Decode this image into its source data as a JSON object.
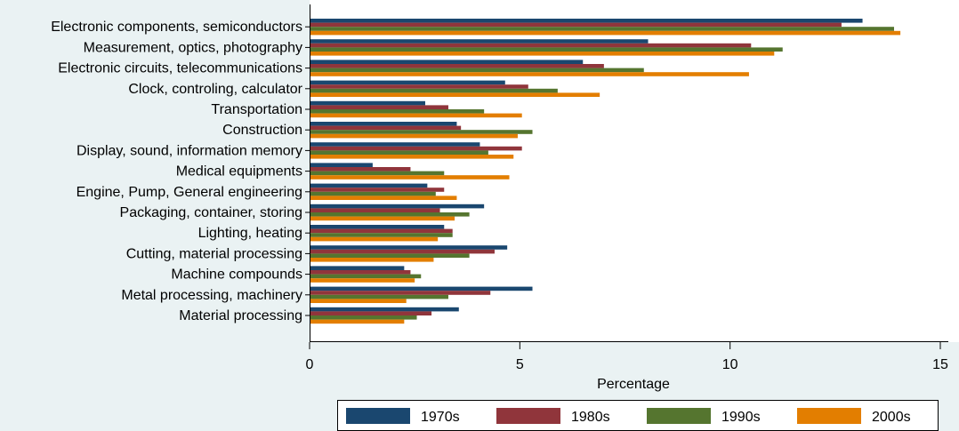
{
  "chart_data": {
    "type": "bar",
    "orientation": "horizontal",
    "title": "",
    "xlabel": "Percentage",
    "ylabel": "",
    "xlim": [
      0,
      15
    ],
    "x_ticks": [
      0,
      5,
      10,
      15
    ],
    "grid": false,
    "legend_position": "bottom",
    "categories": [
      "Electronic components, semiconductors",
      "Measurement, optics, photography",
      "Electronic circuits, telecommunications",
      "Clock, controling, calculator",
      "Transportation",
      "Construction",
      "Display, sound, information memory",
      "Medical equipments",
      "Engine, Pump, General engineering",
      "Packaging, container, storing",
      "Lighting, heating",
      "Cutting, material processing",
      "Machine compounds",
      "Metal processing, machinery",
      "Material processing"
    ],
    "series": [
      {
        "name": "1970s",
        "color": "#1a476f",
        "values": [
          13.15,
          8.05,
          6.5,
          4.65,
          2.75,
          3.5,
          4.05,
          1.5,
          2.8,
          4.15,
          3.2,
          4.7,
          2.25,
          5.3,
          3.55
        ]
      },
      {
        "name": "1980s",
        "color": "#90353b",
        "values": [
          12.65,
          10.5,
          7.0,
          5.2,
          3.3,
          3.6,
          5.05,
          2.4,
          3.2,
          3.1,
          3.4,
          4.4,
          2.4,
          4.3,
          2.9
        ]
      },
      {
        "name": "1990s",
        "color": "#55752f",
        "values": [
          13.9,
          11.25,
          7.95,
          5.9,
          4.15,
          5.3,
          4.25,
          3.2,
          3.0,
          3.8,
          3.4,
          3.8,
          2.65,
          3.3,
          2.55
        ]
      },
      {
        "name": "2000s",
        "color": "#e37e00",
        "values": [
          14.05,
          11.05,
          10.45,
          6.9,
          5.05,
          4.95,
          4.85,
          4.75,
          3.5,
          3.45,
          3.05,
          2.95,
          2.5,
          2.3,
          2.25
        ]
      }
    ]
  }
}
